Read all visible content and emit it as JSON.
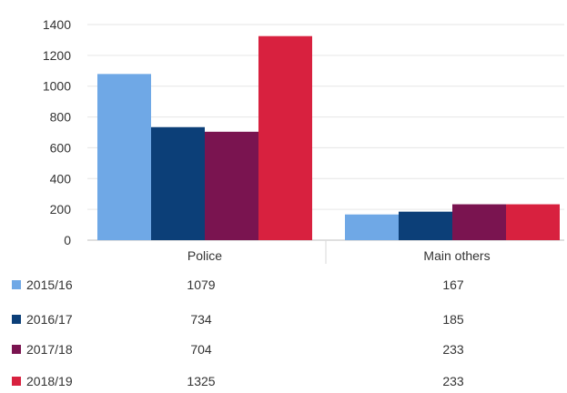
{
  "chart_data": {
    "type": "bar",
    "categories": [
      "Police",
      "Main others"
    ],
    "series": [
      {
        "name": "2015/16",
        "values": [
          1079,
          167
        ],
        "color": "#6fa8e6"
      },
      {
        "name": "2016/17",
        "values": [
          734,
          185
        ],
        "color": "#0c3f78"
      },
      {
        "name": "2017/18",
        "values": [
          704,
          233
        ],
        "color": "#7a1450"
      },
      {
        "name": "2018/19",
        "values": [
          1325,
          233
        ],
        "color": "#d8213f"
      }
    ],
    "yticks": [
      0,
      200,
      400,
      600,
      800,
      1000,
      1200,
      1400
    ],
    "ylim": [
      0,
      1400
    ],
    "grid": true,
    "legend": "data-table-below"
  }
}
